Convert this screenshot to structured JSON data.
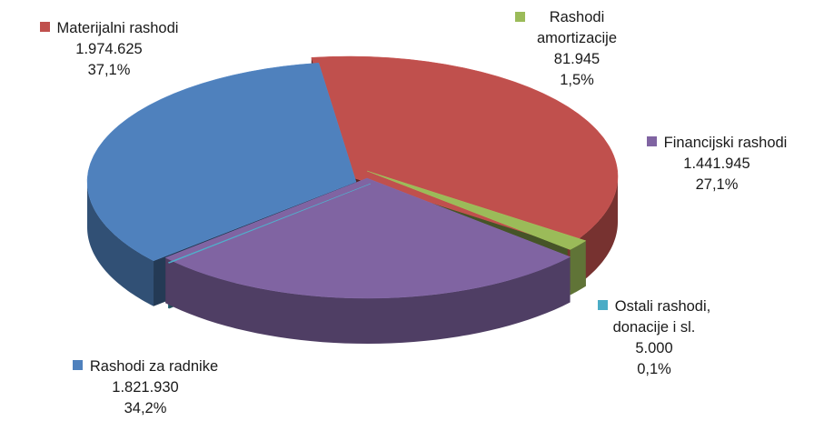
{
  "chart_data": {
    "type": "pie",
    "three_d": true,
    "legend": "none",
    "slices": [
      {
        "name": "Materijalni rashodi",
        "value_label": "1.974.625",
        "value": 1974625,
        "percent_label": "37,1%",
        "percent": 37.1,
        "color": "#c0504d"
      },
      {
        "name": "Rashodi amortizacije",
        "name_lines": [
          "Rashodi",
          "amortizacije"
        ],
        "value_label": "81.945",
        "value": 81945,
        "percent_label": "1,5%",
        "percent": 1.5,
        "color": "#9bbb59"
      },
      {
        "name": "Financijski rashodi",
        "value_label": "1.441.945",
        "value": 1441945,
        "percent_label": "27,1%",
        "percent": 27.1,
        "color": "#8064a2"
      },
      {
        "name": "Ostali rashodi, donacije i sl.",
        "name_lines": [
          "Ostali rashodi,",
          "donacije i sl."
        ],
        "value_label": "5.000",
        "value": 5000,
        "percent_label": "0,1%",
        "percent": 0.1,
        "color": "#4bacc6"
      },
      {
        "name": "Rashodi za radnike",
        "value_label": "1.821.930",
        "value": 1821930,
        "percent_label": "34,2%",
        "percent": 34.2,
        "color": "#4f81bd"
      }
    ]
  }
}
